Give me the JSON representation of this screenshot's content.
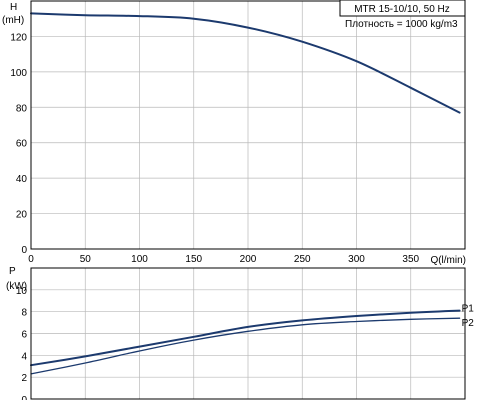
{
  "chart_data": [
    {
      "type": "line",
      "title": "MTR 15-10/10, 50 Hz",
      "subtitle": "Плотность = 1000 kg/m3",
      "ylabel_line1": "H",
      "ylabel_line2": "(mH)",
      "xlabel": "Q(l/min)",
      "xlim": [
        0,
        400
      ],
      "ylim": [
        0,
        140
      ],
      "x_ticks": [
        0,
        50,
        100,
        150,
        200,
        250,
        300,
        350
      ],
      "y_ticks": [
        0,
        20,
        40,
        60,
        80,
        100,
        120
      ],
      "grid": true,
      "series": [
        {
          "color": "#1c3a6e",
          "x": [
            0,
            50,
            100,
            150,
            200,
            250,
            300,
            350,
            395
          ],
          "y": [
            133,
            132,
            131.5,
            130,
            125,
            117,
            106,
            91,
            77
          ]
        }
      ]
    },
    {
      "type": "line",
      "ylabel_line1": "P",
      "ylabel_line2": "(kW)",
      "xlim": [
        0,
        400
      ],
      "ylim": [
        0,
        12
      ],
      "y_ticks": [
        0,
        2,
        4,
        6,
        8,
        10
      ],
      "grid": true,
      "series": [
        {
          "name": "P1",
          "color": "#1c3a6e",
          "x": [
            0,
            50,
            100,
            150,
            200,
            250,
            300,
            350,
            395
          ],
          "y": [
            3.1,
            3.9,
            4.8,
            5.7,
            6.6,
            7.2,
            7.6,
            7.9,
            8.1
          ]
        },
        {
          "name": "P2",
          "color": "#1c3a6e",
          "x": [
            0,
            50,
            100,
            150,
            200,
            250,
            300,
            350,
            395
          ],
          "y": [
            2.3,
            3.3,
            4.4,
            5.4,
            6.2,
            6.8,
            7.1,
            7.3,
            7.4
          ]
        }
      ]
    }
  ]
}
